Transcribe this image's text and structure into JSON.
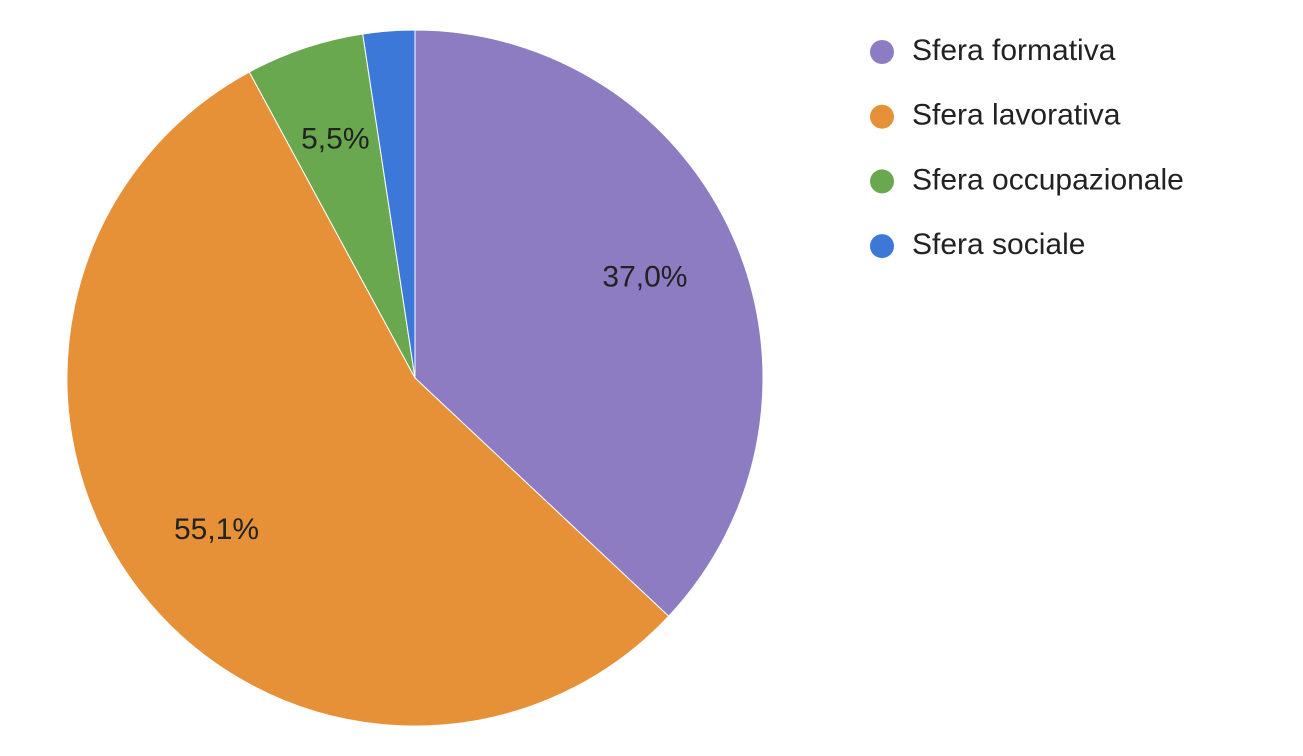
{
  "chart_data": {
    "type": "pie",
    "categories": [
      "Sfera formativa",
      "Sfera lavorativa",
      "Sfera occupazionale",
      "Sfera sociale"
    ],
    "values": [
      37.0,
      55.1,
      5.5,
      2.4
    ],
    "value_labels": [
      "37,0%",
      "55,1%",
      "5,5%",
      null
    ],
    "colors": [
      "#8e7cc3",
      "#e69138",
      "#6aa84f",
      "#3c78d8"
    ],
    "legend": "right"
  }
}
